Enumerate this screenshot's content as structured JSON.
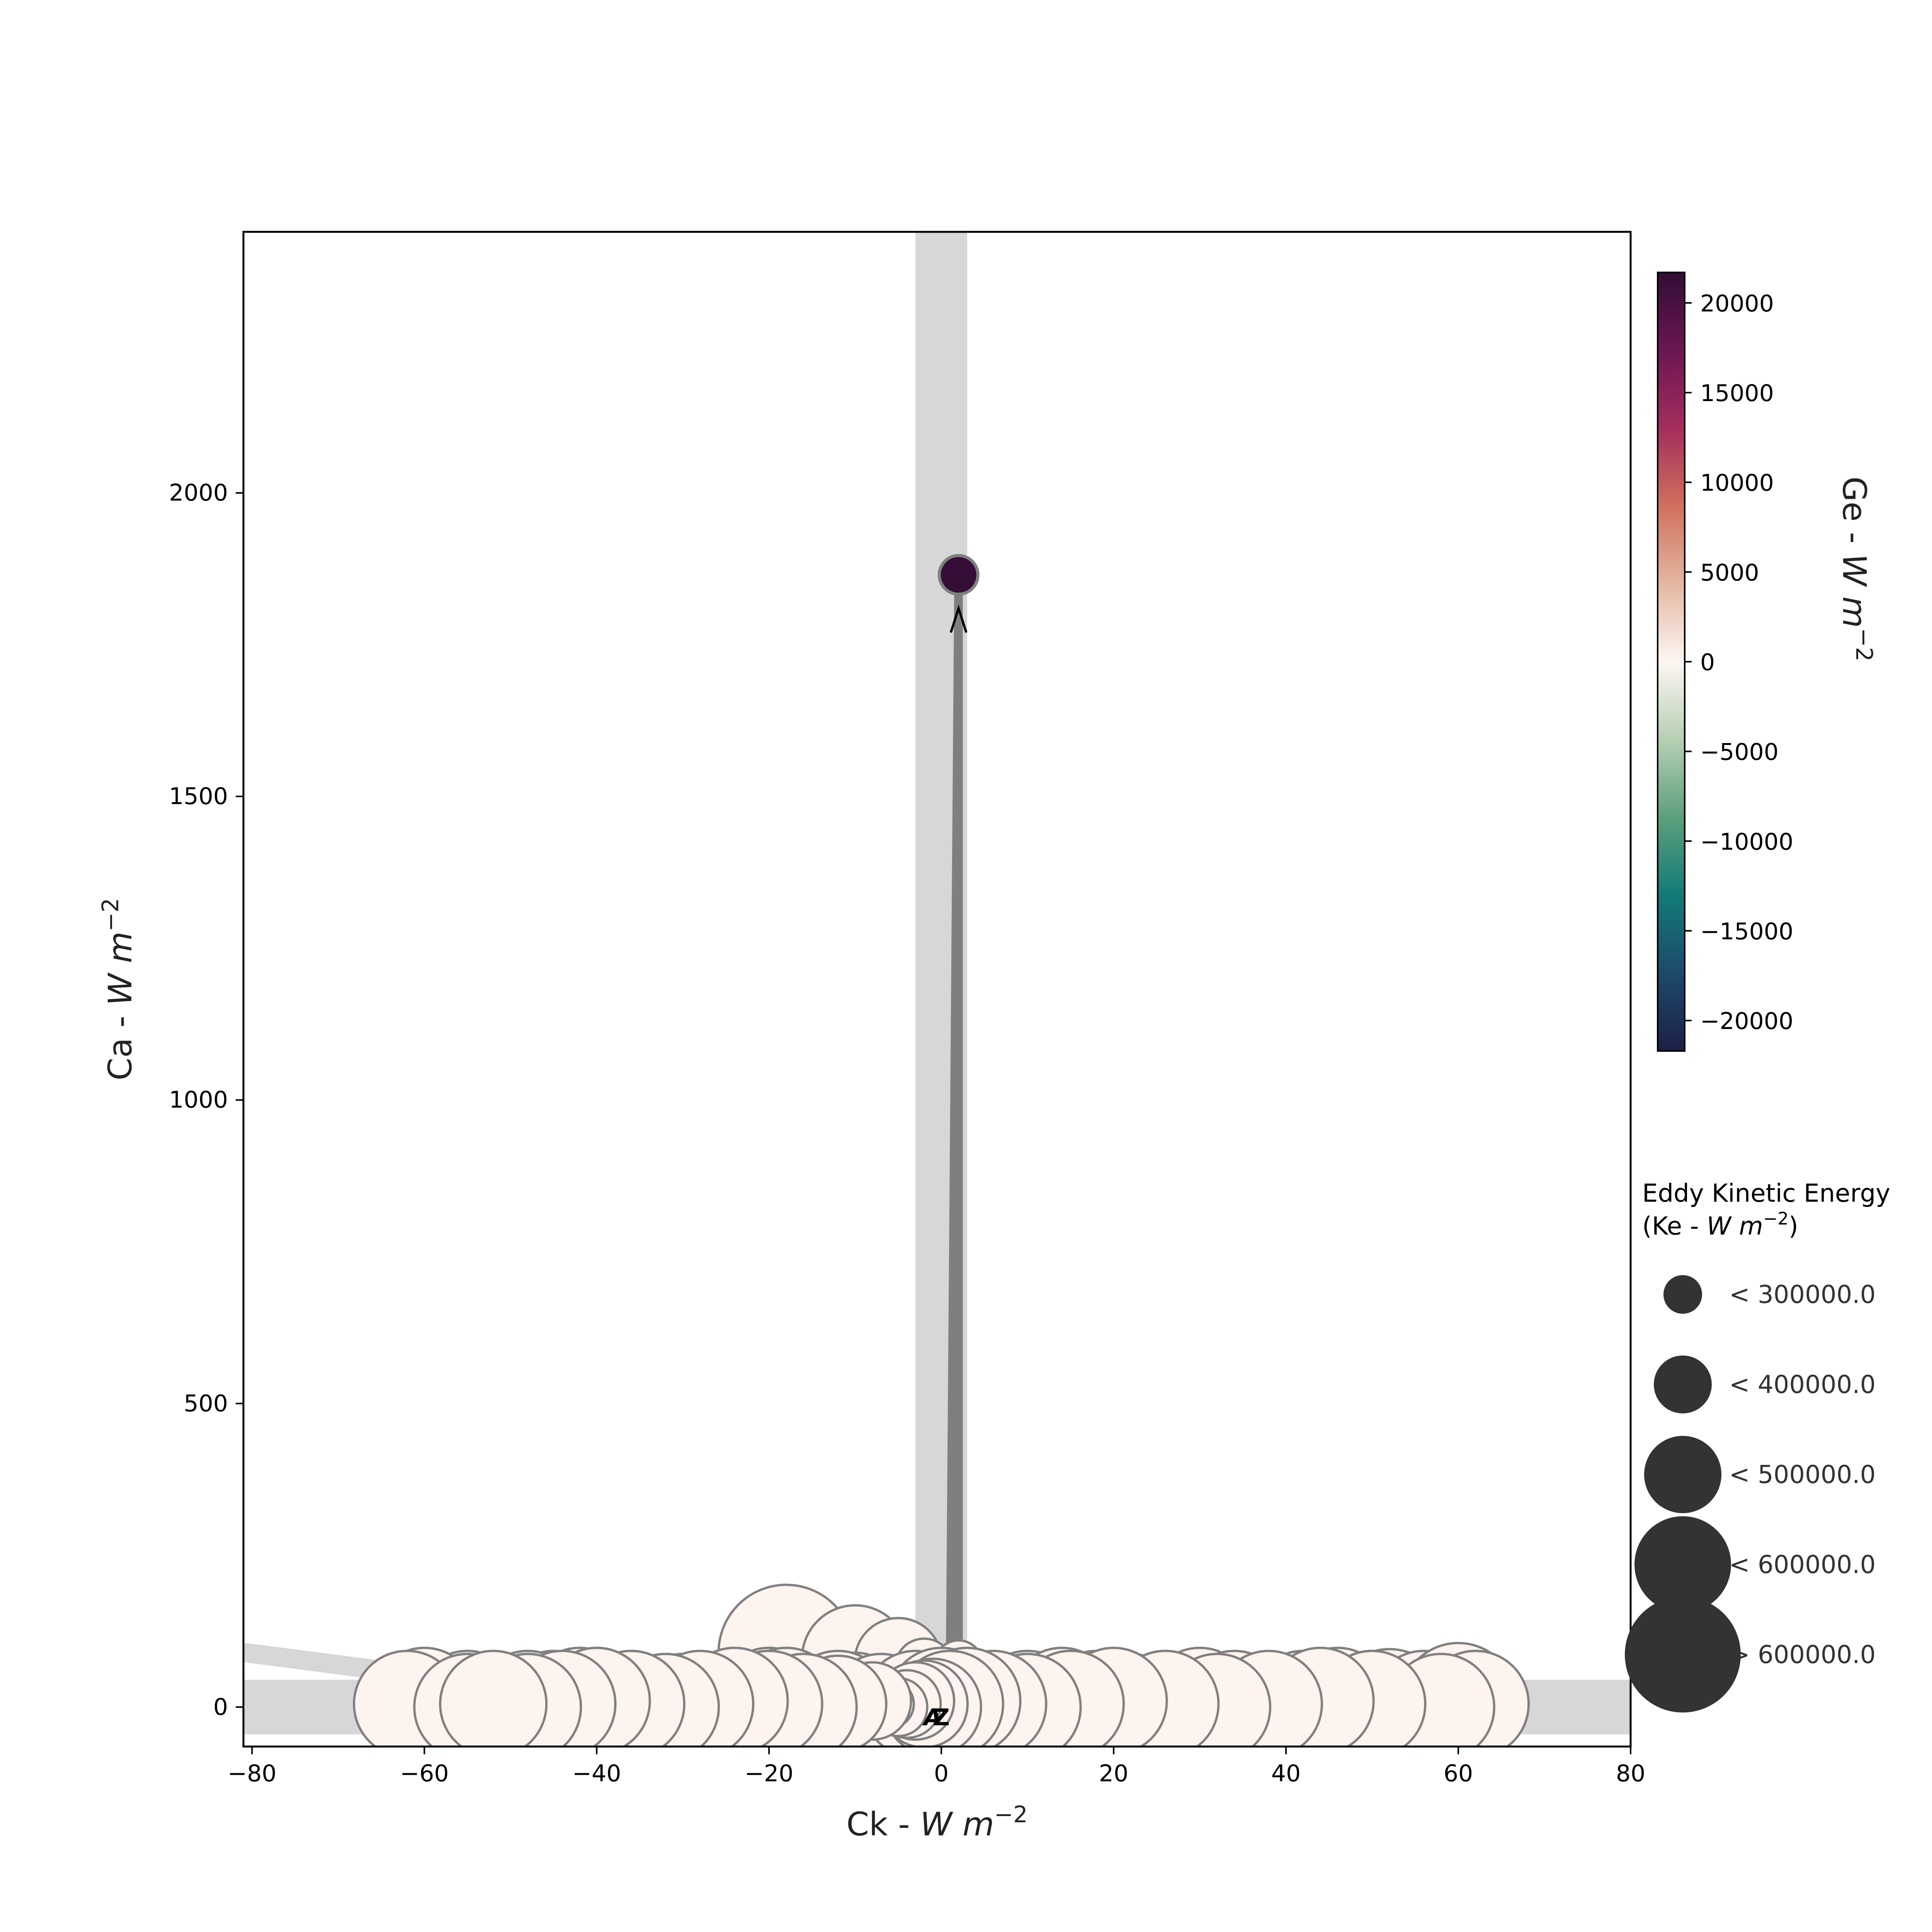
{
  "chart_data": {
    "type": "scatter",
    "xlabel_prefix": "Ck - ",
    "xlabel_unit": "W m",
    "xlabel_exp": "−2",
    "ylabel_prefix": "Ca - ",
    "ylabel_unit": "W m",
    "ylabel_exp": "−2",
    "xlim": [
      -81,
      80
    ],
    "ylim": [
      -65,
      2430
    ],
    "xticks": [
      -80,
      -60,
      -40,
      -20,
      0,
      20,
      40,
      60,
      80
    ],
    "xtick_labels": [
      "−80",
      "−60",
      "−40",
      "−20",
      "0",
      "20",
      "40",
      "60",
      "80"
    ],
    "yticks": [
      0,
      500,
      1000,
      1500,
      2000
    ],
    "ytick_labels": [
      "0",
      "500",
      "1000",
      "1500",
      "2000"
    ],
    "grid": false,
    "zero_bands": true,
    "start_marker": "A",
    "end_marker": "Z",
    "colorbar": {
      "label_prefix": "Ge - ",
      "label_unit": "W m",
      "label_exp": "−2",
      "min": -21700,
      "max": 21700,
      "ticks": [
        20000,
        15000,
        10000,
        5000,
        0,
        -5000,
        -10000,
        -15000,
        -20000
      ],
      "tick_labels": [
        "20000",
        "15000",
        "10000",
        "5000",
        "0",
        "−5000",
        "−10000",
        "−15000",
        "−20000"
      ],
      "colormap": "curl",
      "stops": [
        "#1c1f45",
        "#1d4a6c",
        "#137a78",
        "#5d9f7c",
        "#b7cfb3",
        "#fdf6f3",
        "#e3b7a0",
        "#d0705e",
        "#a32e5d",
        "#6b1651",
        "#310e35"
      ]
    },
    "size_legend": {
      "title_line1": "Eddy Kinetic Energy",
      "title_line2_prefix": "(Ke - ",
      "title_line2_unit": "W m",
      "title_line2_exp": "−2",
      "title_line2_suffix": ")",
      "entries": [
        {
          "label": "< 300000.0",
          "value": 300000
        },
        {
          "label": "< 400000.0",
          "value": 400000
        },
        {
          "label": "< 500000.0",
          "value": 500000
        },
        {
          "label": "< 600000.0",
          "value": 600000
        },
        {
          "label": "> 600000.0",
          "value": 700000
        }
      ],
      "color": "#333333"
    },
    "point_color": "#fdf3ef",
    "point_edge": "#808080",
    "highlight_point": {
      "x": 2.0,
      "y": 1865,
      "ge": 21500,
      "ke": 300000
    },
    "trajectory": {
      "x": [
        -18,
        -10,
        -5,
        -2,
        1,
        2,
        2,
        2,
        1,
        -1,
        -3,
        -6,
        -10,
        -15,
        -20,
        -25,
        -30,
        -35,
        -40,
        -45,
        -50,
        -55,
        -60,
        -62,
        -55,
        -48,
        -42,
        -36,
        -30,
        -24,
        -18,
        -12,
        -7,
        -3,
        0,
        3,
        6,
        10,
        14,
        18,
        22,
        26,
        30,
        34,
        38,
        42,
        46,
        50,
        52,
        56,
        60,
        62,
        58,
        50,
        44,
        38,
        32,
        26,
        20,
        15,
        10,
        6,
        3,
        1,
        -1,
        -2,
        -3,
        -4,
        -5,
        -6,
        -8,
        -12,
        -16,
        -20,
        -24,
        -28,
        -32,
        -36,
        -40,
        -44,
        -48,
        -52
      ],
      "y": [
        90,
        80,
        75,
        65,
        40,
        1865,
        1865,
        70,
        20,
        5,
        0,
        5,
        10,
        5,
        10,
        5,
        0,
        5,
        10,
        5,
        0,
        5,
        10,
        5,
        0,
        5,
        10,
        5,
        0,
        5,
        10,
        5,
        0,
        5,
        10,
        5,
        0,
        5,
        10,
        5,
        0,
        5,
        10,
        5,
        0,
        5,
        10,
        5,
        0,
        5,
        10,
        5,
        0,
        5,
        10,
        5,
        0,
        5,
        10,
        5,
        0,
        5,
        10,
        5,
        0,
        5,
        10,
        5,
        0,
        5,
        10,
        5,
        0,
        5,
        10,
        5,
        0,
        5,
        10,
        5,
        0,
        5
      ],
      "ke": [
        800000,
        650000,
        550000,
        400000,
        300000,
        300000,
        300000,
        350000,
        400000,
        450000,
        500000,
        550000,
        600000,
        600000,
        650000,
        650000,
        650000,
        600000,
        650000,
        650000,
        650000,
        650000,
        650000,
        650000,
        650000,
        650000,
        650000,
        650000,
        650000,
        650000,
        650000,
        650000,
        650000,
        650000,
        650000,
        650000,
        650000,
        650000,
        650000,
        650000,
        650000,
        650000,
        650000,
        650000,
        650000,
        650000,
        650000,
        650000,
        700000,
        650000,
        700000,
        650000,
        650000,
        650000,
        650000,
        650000,
        650000,
        650000,
        650000,
        650000,
        650000,
        650000,
        650000,
        650000,
        600000,
        550000,
        500000,
        450000,
        400000,
        350000,
        500000,
        600000,
        650000,
        650000,
        650000,
        650000,
        650000,
        650000,
        650000,
        650000,
        650000,
        650000
      ]
    }
  }
}
